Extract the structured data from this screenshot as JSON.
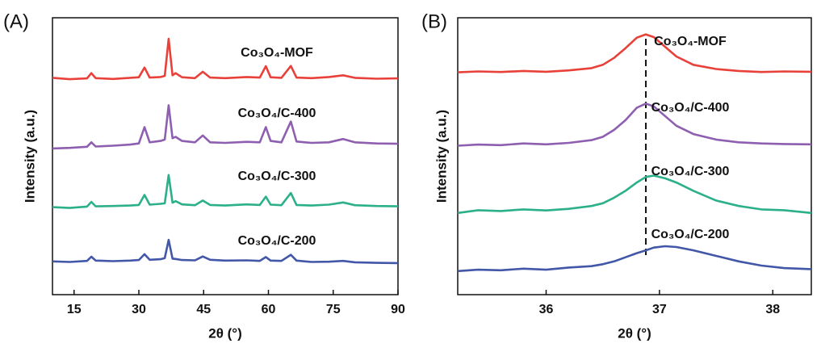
{
  "chart_data": [
    {
      "type": "line",
      "panel_label": "(A)",
      "xlabel": "2θ (°)",
      "ylabel": "Intensity (a.u.)",
      "xlim": [
        10,
        90
      ],
      "xticks": [
        15,
        30,
        45,
        60,
        75,
        90
      ],
      "ylim": [
        0,
        100
      ],
      "x": [
        10,
        14,
        18,
        19,
        20,
        24,
        28,
        30,
        31.3,
        32.5,
        35,
        36,
        36.9,
        37.8,
        38.5,
        40,
        43,
        44.8,
        46.5,
        50,
        55,
        58,
        59.4,
        60.5,
        63,
        65.2,
        66.5,
        70,
        74,
        77.3,
        80,
        85,
        90
      ],
      "series": [
        {
          "name": "Co₃O₄-MOF",
          "color": "#e8413a",
          "values": [
            78.3,
            77.8,
            78.1,
            80,
            78.2,
            77.9,
            78.3,
            78.5,
            82,
            78.4,
            78.6,
            79,
            92.4,
            79.2,
            80,
            78.5,
            78.2,
            80.5,
            78.4,
            78.2,
            78.6,
            78.4,
            82.5,
            78.5,
            78.3,
            82.6,
            78.4,
            78.2,
            78.6,
            79.2,
            78.3,
            78,
            78.1
          ]
        },
        {
          "name": "Co₃O₄/C-400",
          "color": "#8e5fb0",
          "values": [
            52.8,
            53,
            53.4,
            55,
            53.5,
            53.8,
            54.2,
            54.6,
            60.5,
            55,
            55.5,
            56,
            68.4,
            56.5,
            57,
            55.5,
            55,
            57.5,
            55,
            54.8,
            55.2,
            55,
            60.5,
            55.5,
            55,
            62.5,
            55.3,
            54.8,
            55,
            56.2,
            55,
            54.6,
            54.5
          ]
        },
        {
          "name": "Co₃O₄/C-300",
          "color": "#2bb08a",
          "values": [
            31.6,
            31.3,
            31.8,
            33.5,
            31.9,
            32,
            32.2,
            32.4,
            36,
            32.5,
            32.8,
            33,
            43.2,
            33.2,
            33.8,
            32.6,
            32.3,
            34,
            32.4,
            32.2,
            32.6,
            32.4,
            35.4,
            32.5,
            32.3,
            36.7,
            32.4,
            32.2,
            32.5,
            33.3,
            32.3,
            32,
            31.9
          ]
        },
        {
          "name": "Co₃O₄/C-200",
          "color": "#4257a8",
          "values": [
            12,
            11.8,
            12.2,
            13.7,
            12.3,
            12.1,
            12.3,
            12.5,
            14.6,
            12.6,
            12.8,
            13.2,
            19.8,
            13,
            12.9,
            12.5,
            12.4,
            13.8,
            12.6,
            12.3,
            12.4,
            12.2,
            13.6,
            12.3,
            12.2,
            14.4,
            12.3,
            11.8,
            11.9,
            12.2,
            11.7,
            11.5,
            11.4
          ]
        }
      ]
    },
    {
      "type": "line",
      "panel_label": "(B)",
      "xlabel": "2θ (°)",
      "ylabel": "Intensity (a.u.)",
      "xlim": [
        35.22,
        38.34
      ],
      "xticks": [
        36,
        37,
        38
      ],
      "ylim": [
        0,
        100
      ],
      "reference_x": 36.88,
      "x": [
        35.22,
        35.4,
        35.6,
        35.8,
        36,
        36.2,
        36.4,
        36.5,
        36.6,
        36.7,
        36.8,
        36.88,
        36.95,
        37.05,
        37.15,
        37.3,
        37.5,
        37.7,
        37.9,
        38.1,
        38.34
      ],
      "series": [
        {
          "name": "Co₃O₄-MOF",
          "color": "#e8413a",
          "values": [
            80.3,
            80.6,
            80.4,
            80.8,
            80.5,
            81,
            81.8,
            83,
            85.5,
            89,
            92.8,
            94,
            93,
            89.5,
            86,
            83,
            81.5,
            80.8,
            80.4,
            80.6,
            80.5
          ]
        },
        {
          "name": "Co₃O₄/C-400",
          "color": "#8e5fb0",
          "values": [
            53.8,
            54.2,
            54,
            54.6,
            54.3,
            54.8,
            55.8,
            57,
            59.5,
            63,
            67.5,
            69,
            68,
            64.5,
            61,
            58,
            56,
            55,
            54.6,
            54.4,
            54.3
          ]
        },
        {
          "name": "Co₃O₄/C-300",
          "color": "#2bb08a",
          "values": [
            29.5,
            30.5,
            30.2,
            30.8,
            30.4,
            31,
            32,
            33,
            35,
            37.5,
            40.5,
            42.5,
            43,
            42,
            40.5,
            37.5,
            34,
            32,
            30.8,
            30.5,
            29.5
          ]
        },
        {
          "name": "Co₃O₄/C-200",
          "color": "#4257a8",
          "values": [
            8.5,
            9,
            8.8,
            9.4,
            9,
            9.8,
            10.3,
            11,
            12,
            13.5,
            15,
            16,
            17,
            17.5,
            17.2,
            16,
            14,
            12,
            10.5,
            9.6,
            9.2
          ]
        }
      ]
    }
  ]
}
